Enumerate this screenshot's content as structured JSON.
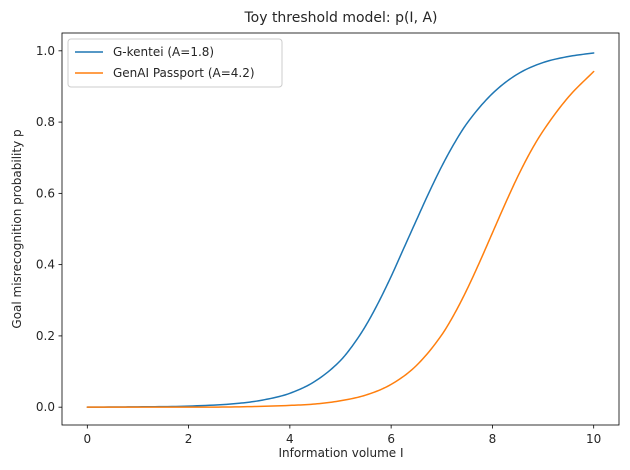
{
  "chart_data": {
    "type": "line",
    "title": "Toy threshold model: p(I, A)",
    "xlabel": "Information volume I",
    "ylabel": "Goal misrecognition probability p",
    "xlim": [
      -0.5,
      10.5
    ],
    "ylim": [
      -0.05,
      1.05
    ],
    "xticks": [
      0,
      2,
      4,
      6,
      8,
      10
    ],
    "xtick_labels": [
      "0",
      "2",
      "4",
      "6",
      "8",
      "10"
    ],
    "yticks": [
      0.0,
      0.2,
      0.4,
      0.6,
      0.8,
      1.0
    ],
    "ytick_labels": [
      "0.0",
      "0.2",
      "0.4",
      "0.6",
      "0.8",
      "1.0"
    ],
    "grid": false,
    "legend_position": "top-left",
    "series": [
      {
        "name": "G-kentei (A=1.8)",
        "color": "#1f77b4",
        "x": [
          0,
          1,
          2,
          3,
          3.5,
          4,
          4.5,
          5,
          5.25,
          5.5,
          5.75,
          6,
          6.25,
          6.5,
          6.75,
          7,
          7.25,
          7.5,
          8,
          8.5,
          9,
          9.5,
          10
        ],
        "y": [
          0.0,
          0.001,
          0.003,
          0.011,
          0.021,
          0.039,
          0.073,
          0.131,
          0.175,
          0.229,
          0.294,
          0.367,
          0.446,
          0.525,
          0.603,
          0.676,
          0.741,
          0.797,
          0.88,
          0.935,
          0.967,
          0.984,
          0.994
        ]
      },
      {
        "name": "GenAI Passport (A=4.2)",
        "color": "#ff7f0e",
        "x": [
          0,
          2,
          3,
          4,
          4.5,
          5,
          5.5,
          6,
          6.5,
          7,
          7.25,
          7.5,
          7.75,
          8,
          8.25,
          8.5,
          8.75,
          9,
          9.5,
          10
        ],
        "y": [
          0.0,
          0.0,
          0.001,
          0.005,
          0.009,
          0.018,
          0.034,
          0.064,
          0.117,
          0.203,
          0.262,
          0.331,
          0.408,
          0.489,
          0.57,
          0.647,
          0.716,
          0.775,
          0.87,
          0.942
        ]
      }
    ]
  }
}
